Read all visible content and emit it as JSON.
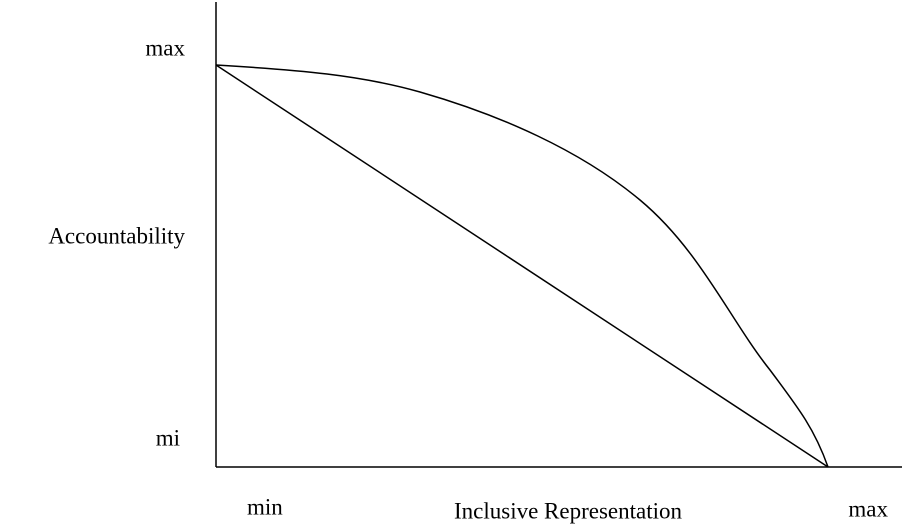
{
  "y_axis": {
    "max_label": "max",
    "title": "Accountability",
    "min_label": "mi"
  },
  "x_axis": {
    "min_label": "min",
    "title": "Inclusive Representation",
    "max_label": "max"
  }
}
